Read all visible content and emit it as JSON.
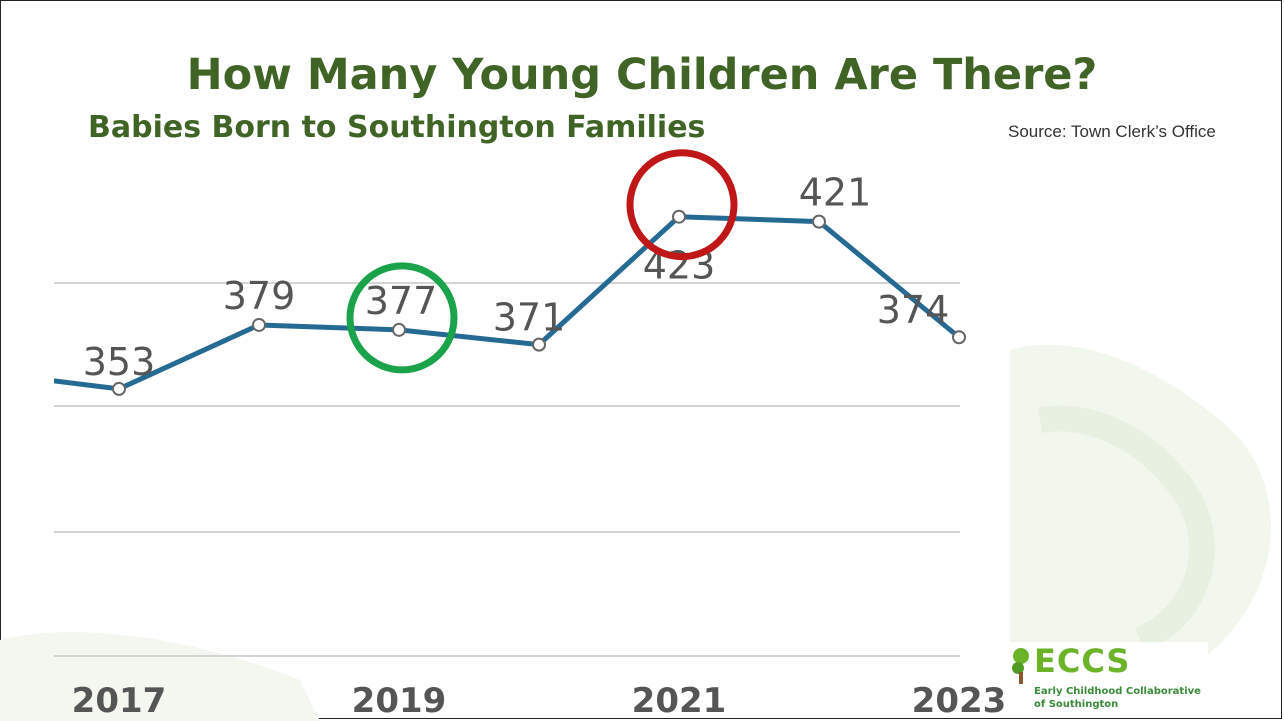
{
  "title": "How Many Young Children Are There?",
  "subtitle": "Babies Born to Southington Families",
  "source": "Source: Town Clerk’s Office",
  "logo": {
    "name": "ECCS",
    "line1": "Early Childhood Collaborative",
    "line2": "of Southington"
  },
  "colors": {
    "title": "#3f6425",
    "line": "#256a92",
    "green_circle": "#1aa34a",
    "red_circle": "#c01818"
  },
  "chart_data": {
    "type": "line",
    "x": [
      2016,
      2017,
      2018,
      2019,
      2020,
      2021,
      2022,
      2023
    ],
    "x_tick_labels": [
      "2017",
      "2019",
      "2021",
      "2023"
    ],
    "x_tick_values": [
      2017,
      2019,
      2021,
      2023
    ],
    "series": [
      {
        "values": [
          360,
          353,
          379,
          377,
          371,
          423,
          421,
          374
        ],
        "labels": [
          "",
          "353",
          "379",
          "377",
          "371",
          "423",
          "421",
          "374"
        ]
      }
    ],
    "highlights": [
      {
        "x": 2019,
        "color": "green"
      },
      {
        "x": 2021,
        "color": "red"
      }
    ],
    "grid": true,
    "title": "",
    "xlabel": "",
    "ylabel": ""
  }
}
